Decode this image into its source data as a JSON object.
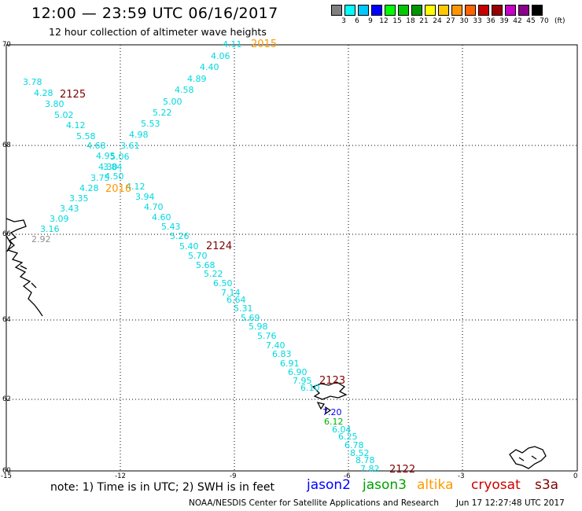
{
  "header": {
    "title": "12:00 — 23:59 UTC 06/16/2017",
    "subtitle": "12 hour collection of altimeter wave heights"
  },
  "color_scale": {
    "labels": [
      "3",
      "6",
      "9",
      "12",
      "15",
      "18",
      "21",
      "24",
      "27",
      "30",
      "33",
      "36",
      "39",
      "42",
      "45",
      "70"
    ],
    "colors": [
      "#808080",
      "#00ffff",
      "#00c8ff",
      "#0000ff",
      "#00ff00",
      "#00c800",
      "#009600",
      "#ffff00",
      "#ffc800",
      "#ff9600",
      "#ff6400",
      "#c80000",
      "#960000",
      "#c800c8",
      "#8c008c",
      "#000000"
    ],
    "unit": "(ft)"
  },
  "axes": {
    "lat_labels": [
      "70",
      "68",
      "66",
      "64",
      "62",
      "60"
    ],
    "lon_labels": [
      "-15",
      "-12",
      "-9",
      "-6",
      "-3",
      "0"
    ]
  },
  "times": [
    {
      "text": "2015",
      "color": "#ff9900"
    },
    {
      "text": "2125",
      "color": "#800000"
    },
    {
      "text": "2016",
      "color": "#ff9900"
    },
    {
      "text": "2124",
      "color": "#800000"
    },
    {
      "text": "2123",
      "color": "#800000"
    },
    {
      "text": "2122",
      "color": "#800000"
    }
  ],
  "track_a": [
    {
      "text": "4.11",
      "color": "#00d8e0"
    },
    {
      "text": "4.06",
      "color": "#00d8e0"
    },
    {
      "text": "4.40",
      "color": "#00d8e0"
    },
    {
      "text": "4.89",
      "color": "#00d8e0"
    },
    {
      "text": "4.58",
      "color": "#00d8e0"
    },
    {
      "text": "5.00",
      "color": "#00d8e0"
    },
    {
      "text": "5.22",
      "color": "#00d8e0"
    },
    {
      "text": "5.53",
      "color": "#00d8e0"
    },
    {
      "text": "4.98",
      "color": "#00d8e0"
    },
    {
      "text": "3.61",
      "color": "#00d8e0"
    },
    {
      "text": "5.06",
      "color": "#00d8e0"
    },
    {
      "text": "3.84",
      "color": "#00d8e0"
    },
    {
      "text": "4.50",
      "color": "#00d8e0"
    },
    {
      "text": "3.75",
      "color": "#00d8e0"
    },
    {
      "text": "4.28",
      "color": "#00d8e0"
    },
    {
      "text": "3.35",
      "color": "#00d8e0"
    },
    {
      "text": "3.43",
      "color": "#00d8e0"
    },
    {
      "text": "3.09",
      "color": "#00d8e0"
    },
    {
      "text": "3.16",
      "color": "#00d8e0"
    },
    {
      "text": "2.92",
      "color": "#909090"
    }
  ],
  "track_b": [
    {
      "text": "3.78",
      "color": "#00d8e0"
    },
    {
      "text": "4.28",
      "color": "#00d8e0"
    },
    {
      "text": "3.80",
      "color": "#00d8e0"
    },
    {
      "text": "5.02",
      "color": "#00d8e0"
    },
    {
      "text": "4.12",
      "color": "#00d8e0"
    },
    {
      "text": "5.58",
      "color": "#00d8e0"
    },
    {
      "text": "4.68",
      "color": "#00d8e0"
    },
    {
      "text": "4.95",
      "color": "#00d8e0"
    },
    {
      "text": "4.30",
      "color": "#00d8e0"
    },
    {
      "text": "4.12",
      "color": "#00d8e0"
    },
    {
      "text": "3.94",
      "color": "#00d8e0"
    },
    {
      "text": "4.70",
      "color": "#00d8e0"
    },
    {
      "text": "4.60",
      "color": "#00d8e0"
    },
    {
      "text": "5.43",
      "color": "#00d8e0"
    },
    {
      "text": "5.26",
      "color": "#00d8e0"
    },
    {
      "text": "5.40",
      "color": "#00d8e0"
    },
    {
      "text": "5.70",
      "color": "#00d8e0"
    },
    {
      "text": "5.68",
      "color": "#00d8e0"
    },
    {
      "text": "5.22",
      "color": "#00d8e0"
    },
    {
      "text": "6.50",
      "color": "#00d8e0"
    },
    {
      "text": "7.14",
      "color": "#00d8e0"
    },
    {
      "text": "6.64",
      "color": "#00d8e0"
    },
    {
      "text": "5.31",
      "color": "#00d8e0"
    },
    {
      "text": "5.69",
      "color": "#00d8e0"
    },
    {
      "text": "5.98",
      "color": "#00d8e0"
    },
    {
      "text": "5.76",
      "color": "#00d8e0"
    },
    {
      "text": "7.40",
      "color": "#00d8e0"
    },
    {
      "text": "6.83",
      "color": "#00d8e0"
    },
    {
      "text": "6.91",
      "color": "#00d8e0"
    },
    {
      "text": "6.90",
      "color": "#00d8e0"
    },
    {
      "text": "7.95",
      "color": "#00d8e0"
    },
    {
      "text": "6.10",
      "color": "#00d8e0"
    },
    {
      "text": "7.20",
      "color": "#0000ff"
    },
    {
      "text": "6.12",
      "color": "#00b000"
    },
    {
      "text": "6.04",
      "color": "#00d8e0"
    },
    {
      "text": "6.25",
      "color": "#00d8e0"
    },
    {
      "text": "6.78",
      "color": "#00d8e0"
    },
    {
      "text": "8.52",
      "color": "#00d8e0"
    },
    {
      "text": "8.78",
      "color": "#00d8e0"
    },
    {
      "text": "7.82",
      "color": "#00d8e0"
    }
  ],
  "footer": {
    "note": "note:  1) Time is in UTC; 2) SWH is in feet",
    "satellites": [
      {
        "name": "jason2",
        "color": "#0000ff"
      },
      {
        "name": "jason3",
        "color": "#00a000"
      },
      {
        "name": "altika",
        "color": "#ff9900"
      },
      {
        "name": "cryosat",
        "color": "#cc0000"
      },
      {
        "name": "s3a",
        "color": "#800000"
      }
    ],
    "credit": "NOAA/NESDIS Center for Satellite Applications and Research",
    "timestamp": "Jun 17 12:27:48 UTC 2017"
  }
}
